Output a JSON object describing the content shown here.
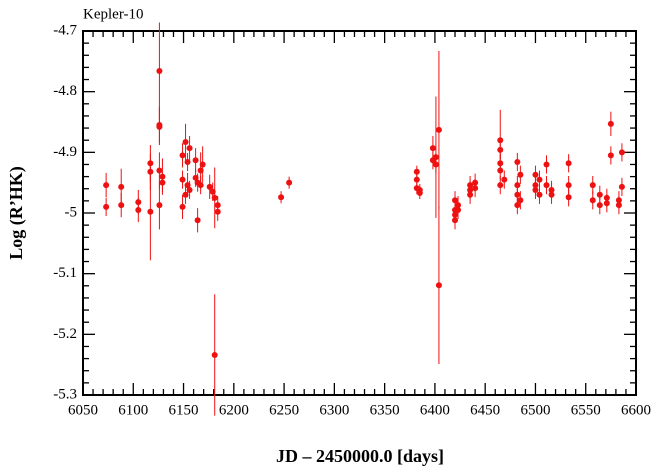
{
  "chart_data": {
    "type": "scatter",
    "title": "Kepler-10",
    "xlabel": "JD – 2450000.0 [days]",
    "ylabel": "Log (R’HK)",
    "color": "#ee1111",
    "xlim": [
      6050,
      6600
    ],
    "ylim": [
      -5.3,
      -4.7
    ],
    "xticks": [
      6050,
      6100,
      6150,
      6200,
      6250,
      6300,
      6350,
      6400,
      6450,
      6500,
      6550,
      6600
    ],
    "yticks": [
      -5.3,
      -5.2,
      -5.1,
      -5.0,
      -4.9,
      -4.8,
      -4.7
    ],
    "x": [
      6073,
      6073,
      6088,
      6088,
      6105,
      6105,
      6117,
      6117,
      6117,
      6126,
      6126,
      6126,
      6126,
      6126,
      6129,
      6129,
      6149,
      6149,
      6149,
      6152,
      6152,
      6154,
      6154,
      6156,
      6156,
      6162,
      6162,
      6164,
      6164,
      6167,
      6167,
      6169,
      6176,
      6179,
      6181,
      6181,
      6184,
      6184,
      6247,
      6255,
      6382,
      6382,
      6382,
      6385,
      6385,
      6398,
      6398,
      6401,
      6401,
      6404,
      6404,
      6420,
      6420,
      6420,
      6420,
      6423,
      6423,
      6435,
      6435,
      6435,
      6440,
      6440,
      6465,
      6465,
      6465,
      6465,
      6465,
      6469,
      6482,
      6482,
      6482,
      6482,
      6485,
      6485,
      6500,
      6500,
      6500,
      6504,
      6504,
      6511,
      6511,
      6516,
      6516,
      6533,
      6533,
      6533,
      6557,
      6557,
      6564,
      6564,
      6571,
      6571,
      6575,
      6575,
      6583,
      6583,
      6586,
      6586
    ],
    "values": [
      -4.954,
      -4.99,
      -4.957,
      -4.987,
      -4.982,
      -4.995,
      -4.918,
      -4.932,
      -4.998,
      -4.855,
      -4.858,
      -4.766,
      -4.93,
      -4.987,
      -4.94,
      -4.95,
      -4.905,
      -4.945,
      -4.99,
      -4.883,
      -4.97,
      -4.916,
      -4.954,
      -4.893,
      -4.962,
      -4.913,
      -4.942,
      -5.012,
      -4.95,
      -4.93,
      -4.954,
      -4.92,
      -4.957,
      -4.965,
      -5.234,
      -4.975,
      -4.987,
      -4.998,
      -4.974,
      -4.95,
      -4.932,
      -4.945,
      -4.959,
      -4.962,
      -4.967,
      -4.893,
      -4.913,
      -4.908,
      -4.92,
      -4.863,
      -5.119,
      -4.979,
      -4.995,
      -5.003,
      -5.012,
      -4.987,
      -4.995,
      -4.954,
      -4.962,
      -4.97,
      -4.95,
      -4.959,
      -4.88,
      -4.896,
      -4.918,
      -4.93,
      -4.954,
      -4.945,
      -4.916,
      -4.954,
      -4.97,
      -4.987,
      -4.937,
      -4.979,
      -4.937,
      -4.954,
      -4.962,
      -4.945,
      -4.97,
      -4.92,
      -4.954,
      -4.962,
      -4.97,
      -4.918,
      -4.954,
      -4.974,
      -4.954,
      -4.979,
      -4.97,
      -4.987,
      -4.975,
      -4.984,
      -4.853,
      -4.905,
      -4.979,
      -4.987,
      -4.9,
      -4.957
    ],
    "errors": [
      0.02,
      0.015,
      0.03,
      0.02,
      0.02,
      0.02,
      0.03,
      0.03,
      0.08,
      0.03,
      0.03,
      0.08,
      0.03,
      0.04,
      0.03,
      0.015,
      0.02,
      0.015,
      0.02,
      0.03,
      0.015,
      0.015,
      0.02,
      0.02,
      0.015,
      0.02,
      0.015,
      0.02,
      0.015,
      0.03,
      0.015,
      0.03,
      0.02,
      0.015,
      0.1,
      0.05,
      0.015,
      0.015,
      0.01,
      0.01,
      0.01,
      0.01,
      0.01,
      0.01,
      0.01,
      0.02,
      0.015,
      0.1,
      0.015,
      0.13,
      0.13,
      0.015,
      0.015,
      0.015,
      0.015,
      0.015,
      0.015,
      0.015,
      0.015,
      0.015,
      0.015,
      0.015,
      0.05,
      0.015,
      0.015,
      0.015,
      0.015,
      0.015,
      0.015,
      0.015,
      0.015,
      0.015,
      0.015,
      0.015,
      0.015,
      0.015,
      0.015,
      0.015,
      0.015,
      0.015,
      0.015,
      0.015,
      0.015,
      0.015,
      0.015,
      0.015,
      0.015,
      0.015,
      0.015,
      0.015,
      0.015,
      0.015,
      0.02,
      0.015,
      0.015,
      0.015,
      0.015,
      0.015
    ]
  }
}
